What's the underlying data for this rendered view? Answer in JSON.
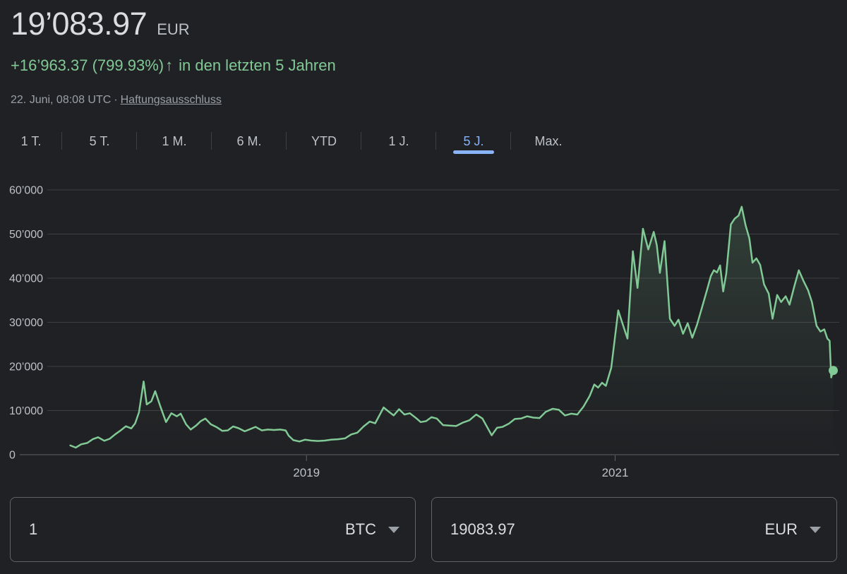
{
  "palette": {
    "background": "#202124",
    "primary_text": "#dadce0",
    "secondary_text": "#9aa0a6",
    "axis_label_text": "#bdc1c6",
    "positive_green": "#81c995",
    "selected_blue": "#8ab4f8",
    "gridline": "#3c4043",
    "axis_line": "#5f6368",
    "box_border": "#5f6368"
  },
  "header": {
    "price": "19’083.97",
    "currency": "EUR",
    "change_text": "+16’963.37 (799.93%)",
    "arrow": "↑",
    "change_period": "in den letzten 5 Jahren",
    "timestamp": "22. Juni, 08:08 UTC",
    "separator": "·",
    "disclaimer": "Haftungsausschluss"
  },
  "tabs": {
    "items": [
      {
        "label": "1 T."
      },
      {
        "label": "5 T."
      },
      {
        "label": "1 M."
      },
      {
        "label": "6 M."
      },
      {
        "label": "YTD"
      },
      {
        "label": "1 J."
      },
      {
        "label": "5 J."
      },
      {
        "label": "Max."
      }
    ],
    "selected": "5 J."
  },
  "chart_data": {
    "type": "line",
    "series_name": "BTC-EUR",
    "unit": "EUR",
    "current_value": 19083.97,
    "line_color": "#81c995",
    "grid": "horizontal",
    "legend": "none",
    "x_axis": {
      "start": 2017.458,
      "end": 2022.42,
      "ticks": [
        {
          "label": "2019",
          "t": 2019
        },
        {
          "label": "2021",
          "t": 2021
        }
      ]
    },
    "y_axis": {
      "min": 0,
      "max": 64000,
      "ticks": [
        {
          "label": "0",
          "v": 0
        },
        {
          "label": "10’000",
          "v": 10000
        },
        {
          "label": "20’000",
          "v": 20000
        },
        {
          "label": "30’000",
          "v": 30000
        },
        {
          "label": "40’000",
          "v": 40000
        },
        {
          "label": "50’000",
          "v": 50000
        },
        {
          "label": "60’000",
          "v": 60000
        }
      ]
    },
    "points": [
      [
        2017.47,
        2100
      ],
      [
        2017.505,
        1600
      ],
      [
        2017.54,
        2350
      ],
      [
        2017.58,
        2650
      ],
      [
        2017.615,
        3500
      ],
      [
        2017.65,
        3950
      ],
      [
        2017.69,
        3150
      ],
      [
        2017.725,
        3600
      ],
      [
        2017.76,
        4600
      ],
      [
        2017.8,
        5600
      ],
      [
        2017.83,
        6450
      ],
      [
        2017.865,
        5950
      ],
      [
        2017.89,
        7100
      ],
      [
        2017.915,
        9600
      ],
      [
        2017.945,
        16600
      ],
      [
        2017.965,
        11400
      ],
      [
        2017.995,
        12100
      ],
      [
        2018.02,
        14400
      ],
      [
        2018.05,
        11300
      ],
      [
        2018.09,
        7400
      ],
      [
        2018.125,
        9400
      ],
      [
        2018.16,
        8700
      ],
      [
        2018.185,
        9300
      ],
      [
        2018.22,
        6900
      ],
      [
        2018.25,
        5700
      ],
      [
        2018.285,
        6600
      ],
      [
        2018.315,
        7600
      ],
      [
        2018.345,
        8200
      ],
      [
        2018.38,
        6900
      ],
      [
        2018.42,
        6200
      ],
      [
        2018.455,
        5400
      ],
      [
        2018.49,
        5500
      ],
      [
        2018.525,
        6400
      ],
      [
        2018.56,
        6000
      ],
      [
        2018.6,
        5300
      ],
      [
        2018.635,
        5800
      ],
      [
        2018.67,
        6300
      ],
      [
        2018.71,
        5500
      ],
      [
        2018.75,
        5700
      ],
      [
        2018.79,
        5600
      ],
      [
        2018.83,
        5700
      ],
      [
        2018.865,
        5500
      ],
      [
        2018.885,
        4300
      ],
      [
        2018.915,
        3300
      ],
      [
        2018.955,
        3000
      ],
      [
        2018.99,
        3400
      ],
      [
        2019.03,
        3200
      ],
      [
        2019.075,
        3100
      ],
      [
        2019.12,
        3200
      ],
      [
        2019.16,
        3400
      ],
      [
        2019.205,
        3500
      ],
      [
        2019.25,
        3700
      ],
      [
        2019.29,
        4600
      ],
      [
        2019.33,
        5000
      ],
      [
        2019.37,
        6400
      ],
      [
        2019.41,
        7500
      ],
      [
        2019.445,
        7100
      ],
      [
        2019.5,
        10700
      ],
      [
        2019.535,
        9700
      ],
      [
        2019.565,
        8900
      ],
      [
        2019.6,
        10300
      ],
      [
        2019.635,
        9100
      ],
      [
        2019.67,
        9400
      ],
      [
        2019.71,
        8300
      ],
      [
        2019.74,
        7400
      ],
      [
        2019.775,
        7600
      ],
      [
        2019.81,
        8500
      ],
      [
        2019.845,
        8200
      ],
      [
        2019.885,
        6700
      ],
      [
        2019.925,
        6600
      ],
      [
        2019.97,
        6500
      ],
      [
        2020.015,
        7300
      ],
      [
        2020.055,
        7800
      ],
      [
        2020.1,
        9100
      ],
      [
        2020.14,
        8200
      ],
      [
        2020.2,
        4400
      ],
      [
        2020.235,
        6100
      ],
      [
        2020.27,
        6300
      ],
      [
        2020.31,
        7000
      ],
      [
        2020.35,
        8100
      ],
      [
        2020.39,
        8200
      ],
      [
        2020.43,
        8700
      ],
      [
        2020.47,
        8400
      ],
      [
        2020.51,
        8300
      ],
      [
        2020.55,
        9700
      ],
      [
        2020.595,
        10400
      ],
      [
        2020.635,
        10200
      ],
      [
        2020.675,
        8900
      ],
      [
        2020.715,
        9300
      ],
      [
        2020.755,
        9100
      ],
      [
        2020.795,
        10900
      ],
      [
        2020.835,
        13300
      ],
      [
        2020.865,
        15900
      ],
      [
        2020.89,
        15200
      ],
      [
        2020.915,
        16300
      ],
      [
        2020.94,
        15600
      ],
      [
        2020.975,
        19700
      ],
      [
        2021.02,
        32700
      ],
      [
        2021.05,
        29500
      ],
      [
        2021.08,
        26300
      ],
      [
        2021.115,
        46100
      ],
      [
        2021.145,
        37800
      ],
      [
        2021.18,
        51200
      ],
      [
        2021.215,
        46500
      ],
      [
        2021.25,
        50500
      ],
      [
        2021.27,
        47500
      ],
      [
        2021.29,
        41200
      ],
      [
        2021.32,
        48400
      ],
      [
        2021.355,
        30800
      ],
      [
        2021.385,
        29200
      ],
      [
        2021.41,
        30600
      ],
      [
        2021.44,
        27400
      ],
      [
        2021.47,
        29800
      ],
      [
        2021.5,
        26500
      ],
      [
        2021.53,
        29400
      ],
      [
        2021.565,
        33600
      ],
      [
        2021.6,
        37900
      ],
      [
        2021.62,
        40500
      ],
      [
        2021.64,
        41800
      ],
      [
        2021.66,
        41300
      ],
      [
        2021.68,
        42900
      ],
      [
        2021.7,
        37000
      ],
      [
        2021.72,
        41000
      ],
      [
        2021.75,
        52200
      ],
      [
        2021.775,
        53500
      ],
      [
        2021.8,
        54200
      ],
      [
        2021.82,
        56200
      ],
      [
        2021.845,
        52000
      ],
      [
        2021.87,
        49000
      ],
      [
        2021.89,
        43500
      ],
      [
        2021.915,
        44500
      ],
      [
        2021.94,
        43000
      ],
      [
        2021.965,
        38600
      ],
      [
        2021.995,
        36500
      ],
      [
        2022.02,
        30800
      ],
      [
        2022.05,
        36200
      ],
      [
        2022.075,
        34600
      ],
      [
        2022.105,
        35900
      ],
      [
        2022.13,
        34000
      ],
      [
        2022.16,
        38000
      ],
      [
        2022.19,
        41800
      ],
      [
        2022.22,
        39400
      ],
      [
        2022.25,
        37300
      ],
      [
        2022.275,
        34600
      ],
      [
        2022.305,
        29200
      ],
      [
        2022.33,
        27900
      ],
      [
        2022.355,
        28400
      ],
      [
        2022.375,
        26300
      ],
      [
        2022.39,
        25800
      ],
      [
        2022.4,
        17500
      ],
      [
        2022.413,
        19084
      ]
    ]
  },
  "converter": {
    "from": {
      "amount": "1",
      "currency": "BTC"
    },
    "to": {
      "amount": "19083.97",
      "currency": "EUR"
    }
  }
}
